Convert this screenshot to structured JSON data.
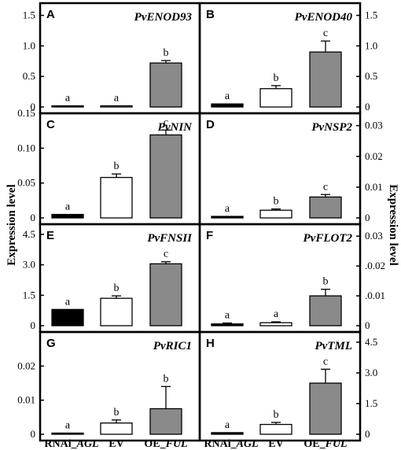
{
  "y_axis_label": "Expression level",
  "x_categories": [
    {
      "pre": "RNAi_",
      "it": "AGL"
    },
    {
      "pre": "EV",
      "it": ""
    },
    {
      "pre": "OE_",
      "it": "FUL"
    }
  ],
  "colors": {
    "RNAi": "#000000",
    "EV": "#ffffff",
    "OE": "#8a8a8a"
  },
  "chart_data": [
    {
      "type": "bar",
      "panel": "A",
      "title": "PvENOD93",
      "axis_side": "left",
      "categories": [
        "RNAi_AGL",
        "EV",
        "OE_FUL"
      ],
      "ylim": [
        0,
        1.7
      ],
      "yticks": [
        0,
        0.5,
        1.0,
        1.5
      ],
      "ytick_labels": [
        "0",
        "0.5",
        "1.0",
        "1.5"
      ],
      "values": [
        0.005,
        0.005,
        0.72
      ],
      "errors": [
        0,
        0,
        0.04
      ],
      "letters": [
        "a",
        "a",
        "b"
      ]
    },
    {
      "type": "bar",
      "panel": "B",
      "title": "PvENOD40",
      "axis_side": "right",
      "categories": [
        "RNAi_AGL",
        "EV",
        "OE_FUL"
      ],
      "ylim": [
        0,
        1.7
      ],
      "yticks": [
        0,
        0.5,
        1.0,
        1.5
      ],
      "ytick_labels": [
        "0",
        "0.5",
        "1.0",
        "1.5"
      ],
      "values": [
        0.05,
        0.3,
        0.9
      ],
      "errors": [
        0,
        0.05,
        0.18
      ],
      "letters": [
        "a",
        "b",
        "c"
      ]
    },
    {
      "type": "bar",
      "panel": "C",
      "title": "PvNIN",
      "axis_side": "left",
      "categories": [
        "RNAi_AGL",
        "EV",
        "OE_FUL"
      ],
      "ylim": [
        0,
        0.15
      ],
      "yticks": [
        0,
        0.05,
        0.1,
        0.15
      ],
      "ytick_labels": [
        "0",
        "0.05",
        "0.10",
        "0.15"
      ],
      "values": [
        0.005,
        0.058,
        0.119
      ],
      "errors": [
        0,
        0.005,
        0.007
      ],
      "letters": [
        "a",
        "b",
        "c"
      ]
    },
    {
      "type": "bar",
      "panel": "D",
      "title": "PvNSP2",
      "axis_side": "right",
      "categories": [
        "RNAi_AGL",
        "EV",
        "OE_FUL"
      ],
      "ylim": [
        0,
        0.034
      ],
      "yticks": [
        0,
        0.01,
        0.02,
        0.03
      ],
      "ytick_labels": [
        "0",
        "0.01",
        "0.02",
        "0.03"
      ],
      "values": [
        0.0005,
        0.0025,
        0.0068
      ],
      "errors": [
        0,
        0.0004,
        0.0008
      ],
      "letters": [
        "a",
        "b",
        "c"
      ]
    },
    {
      "type": "bar",
      "panel": "E",
      "title": "PvFNSII",
      "axis_side": "left",
      "categories": [
        "RNAi_AGL",
        "EV",
        "OE_FUL"
      ],
      "ylim": [
        0,
        5.0
      ],
      "yticks": [
        0,
        1.5,
        3.0,
        4.5
      ],
      "ytick_labels": [
        "0",
        "1.5",
        "3.0",
        "4.5"
      ],
      "values": [
        0.8,
        1.35,
        3.05
      ],
      "errors": [
        0,
        0.12,
        0.1
      ],
      "letters": [
        "a",
        "b",
        "c"
      ]
    },
    {
      "type": "bar",
      "panel": "F",
      "title": "PvFLOT2",
      "axis_side": "right",
      "categories": [
        "RNAi_AGL",
        "EV",
        "OE_FUL"
      ],
      "ylim": [
        0,
        0.034
      ],
      "yticks": [
        0,
        0.01,
        0.02,
        0.03
      ],
      "ytick_labels": [
        "0",
        ".0.01",
        ".0.02",
        "0.03"
      ],
      "values": [
        0.0006,
        0.001,
        0.01
      ],
      "errors": [
        0.0003,
        0.0003,
        0.0022
      ],
      "letters": [
        "a",
        "a",
        "b"
      ]
    },
    {
      "type": "bar",
      "panel": "G",
      "title": "PvRIC1",
      "axis_side": "left",
      "categories": [
        "RNAi_AGL",
        "EV",
        "OE_FUL"
      ],
      "ylim": [
        0,
        0.03
      ],
      "yticks": [
        0,
        0.01,
        0.02
      ],
      "ytick_labels": [
        "0",
        "0.01",
        "0.02"
      ],
      "values": [
        0.0001,
        0.0033,
        0.0075
      ],
      "errors": [
        0,
        0.0009,
        0.0065
      ],
      "letters": [
        "a",
        "b",
        "b"
      ]
    },
    {
      "type": "bar",
      "panel": "H",
      "title": "PvTML",
      "axis_side": "right",
      "categories": [
        "RNAi_AGL",
        "EV",
        "OE_FUL"
      ],
      "ylim": [
        0,
        5.0
      ],
      "yticks": [
        0,
        1.5,
        3.0,
        4.5
      ],
      "ytick_labels": [
        "0",
        "1.5",
        "3.0",
        "4.5"
      ],
      "values": [
        0.08,
        0.48,
        2.5
      ],
      "errors": [
        0,
        0.1,
        0.68
      ],
      "letters": [
        "a",
        "b",
        "c"
      ]
    }
  ]
}
